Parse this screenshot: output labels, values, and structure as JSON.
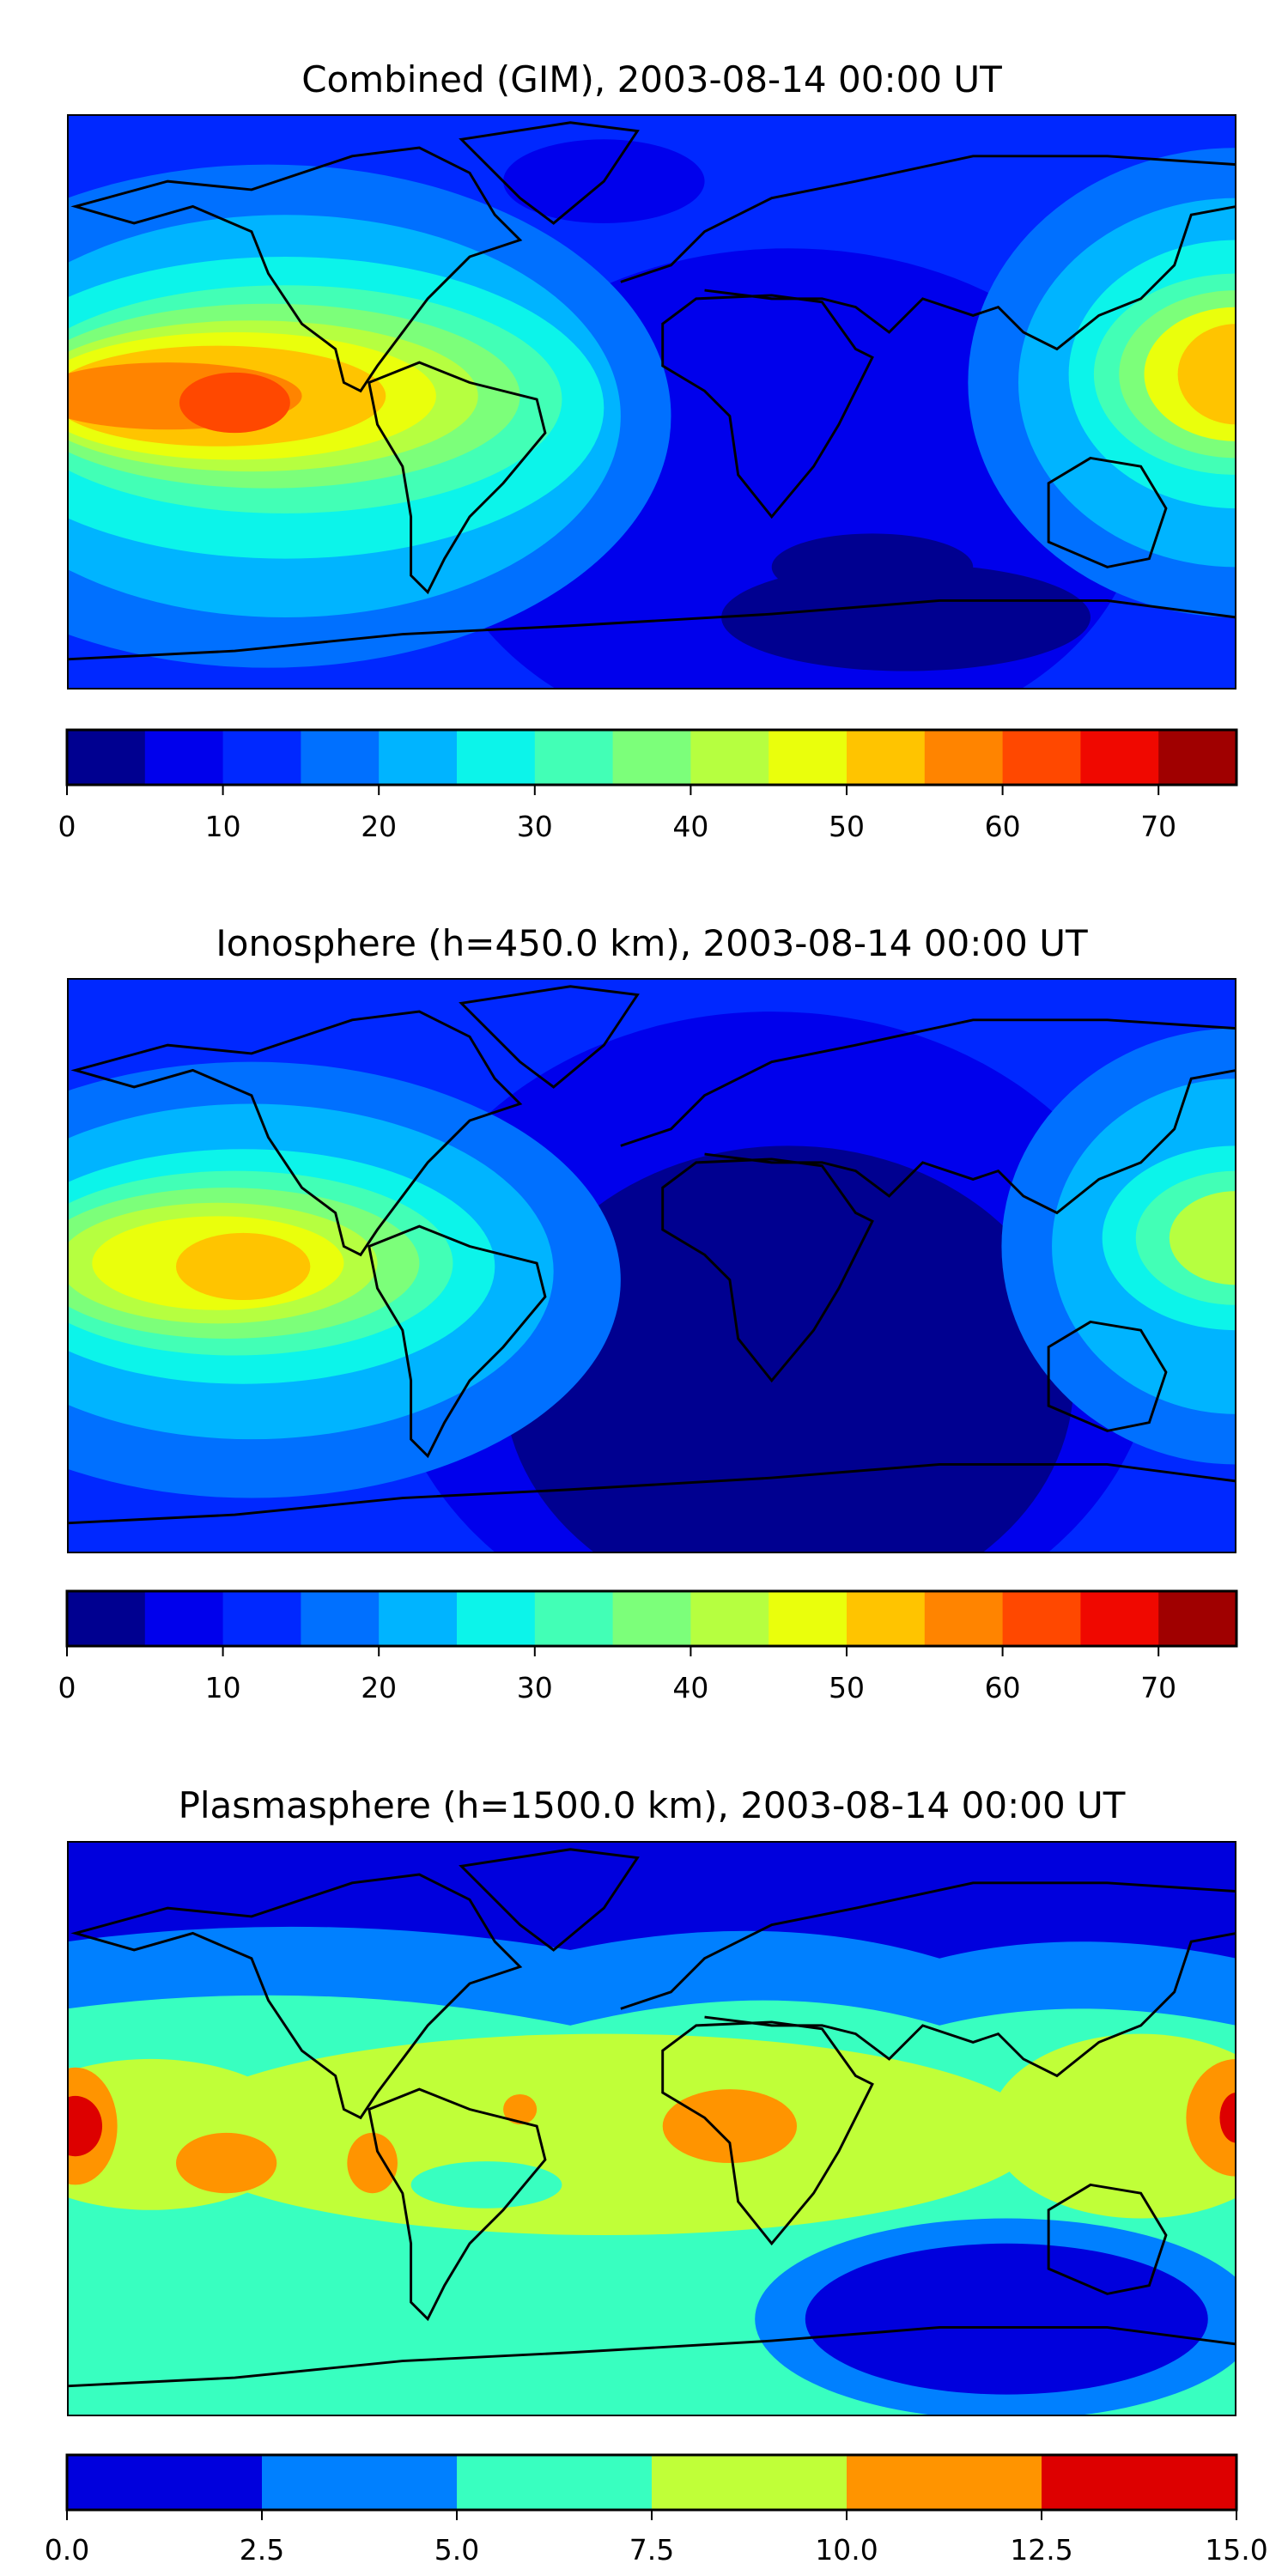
{
  "chart_data": [
    {
      "type": "heatmap",
      "title": "Combined (GIM), 2003-08-14 00:00 UT",
      "colorbar": {
        "bounds": [
          0,
          5,
          10,
          15,
          20,
          25,
          30,
          35,
          40,
          45,
          50,
          55,
          60,
          65,
          70,
          75
        ],
        "colors": [
          "#000090",
          "#0000ec",
          "#0028ff",
          "#0070ff",
          "#00b4ff",
          "#0cf4ea",
          "#42ffb6",
          "#7cff7a",
          "#b6ff40",
          "#eaff0c",
          "#ffc400",
          "#ff8400",
          "#ff4800",
          "#f00800",
          "#a00000"
        ],
        "ticks": [
          0,
          10,
          20,
          30,
          40,
          50,
          60,
          70
        ],
        "tick_labels": [
          "0",
          "10",
          "20",
          "30",
          "40",
          "50",
          "60",
          "70"
        ],
        "range": [
          0,
          75
        ]
      },
      "features": "max ~60-65 over equatorial eastern Pacific; min <5 over southern Indian Ocean"
    },
    {
      "type": "heatmap",
      "title": "Ionosphere  (h=450.0 km), 2003-08-14 00:00 UT",
      "colorbar": {
        "bounds": [
          0,
          5,
          10,
          15,
          20,
          25,
          30,
          35,
          40,
          45,
          50,
          55,
          60,
          65,
          70,
          75
        ],
        "colors": [
          "#000090",
          "#0000ec",
          "#0028ff",
          "#0070ff",
          "#00b4ff",
          "#0cf4ea",
          "#42ffb6",
          "#7cff7a",
          "#b6ff40",
          "#eaff0c",
          "#ffc400",
          "#ff8400",
          "#ff4800",
          "#f00800",
          "#a00000"
        ],
        "ticks": [
          0,
          10,
          20,
          30,
          40,
          50,
          60,
          70
        ],
        "tick_labels": [
          "0",
          "10",
          "20",
          "30",
          "40",
          "50",
          "60",
          "70"
        ],
        "range": [
          0,
          75
        ]
      },
      "features": "max ~50-55 over eastern Pacific; broad min <5 over Atlantic/Indian Ocean"
    },
    {
      "type": "heatmap",
      "title": "Plasmasphere (h=1500.0 km), 2003-08-14 00:00 UT",
      "colorbar": {
        "bounds": [
          0,
          2.5,
          5,
          7.5,
          10,
          12.5,
          15
        ],
        "colors": [
          "#0000dd",
          "#0080ff",
          "#38ffc0",
          "#c0ff38",
          "#ff9400",
          "#dd0000"
        ],
        "ticks": [
          0,
          2.5,
          5,
          7.5,
          10,
          12.5,
          15
        ],
        "tick_labels": [
          "0.0",
          "2.5",
          "5.0",
          "7.5",
          "10.0",
          "12.5",
          "15.0"
        ],
        "range": [
          0,
          15
        ]
      },
      "features": "max 12.5-15 at Pacific edges near the equator; min <2.5 at high northern latitudes and southern Indian Ocean"
    }
  ]
}
